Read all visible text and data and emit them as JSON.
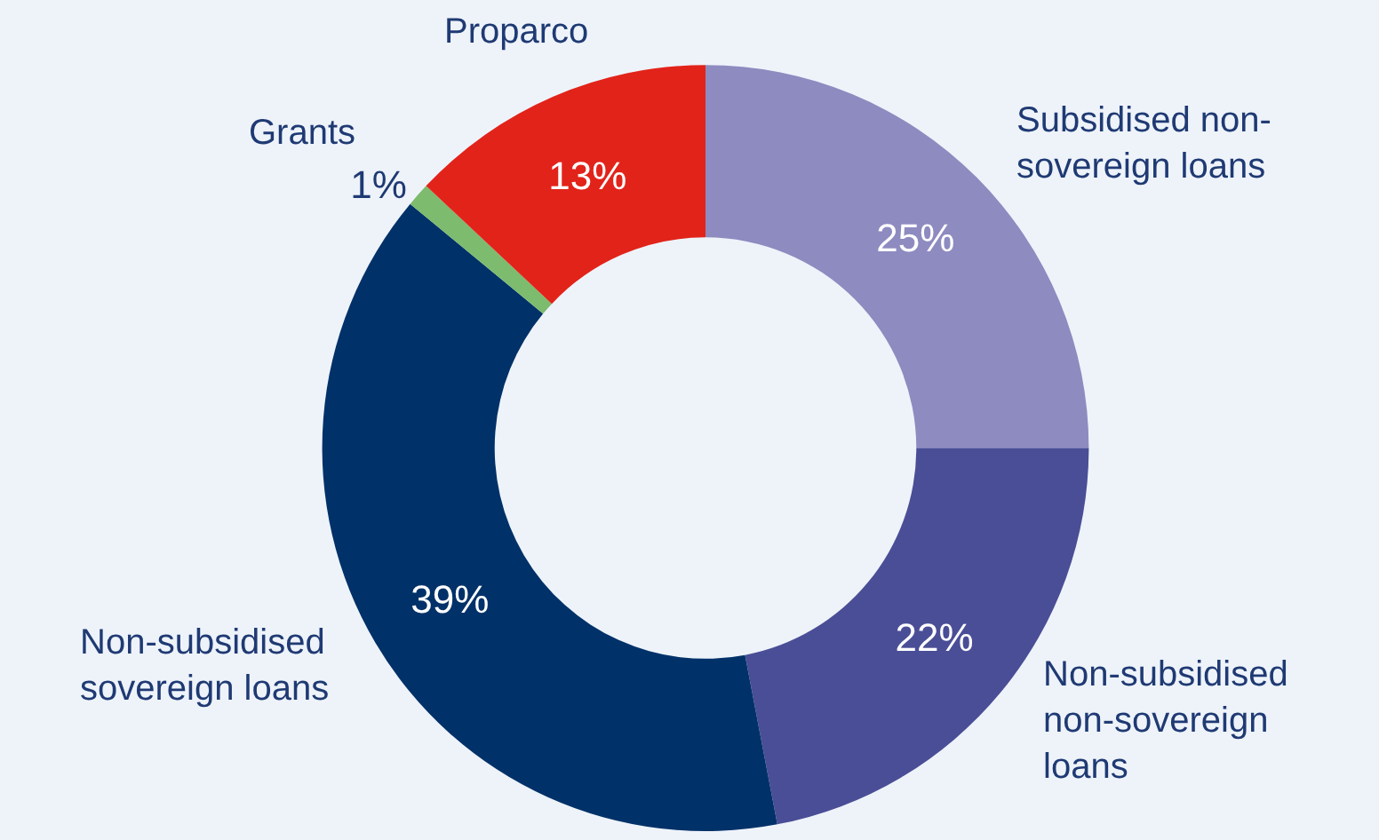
{
  "chart_data": {
    "type": "donut",
    "categories": [
      "Subsidised non-sovereign loans",
      "Non-subsidised non-sovereign loans",
      "Non-subsidised sovereign loans",
      "Grants",
      "Proparco"
    ],
    "values": [
      25,
      22,
      39,
      1,
      13
    ],
    "value_labels": [
      "25%",
      "22%",
      "39%",
      "1%",
      "13%"
    ],
    "colors": [
      "#8e8bc0",
      "#4a4e96",
      "#003168",
      "#7dbb6e",
      "#e2231a"
    ],
    "legend": false
  }
}
